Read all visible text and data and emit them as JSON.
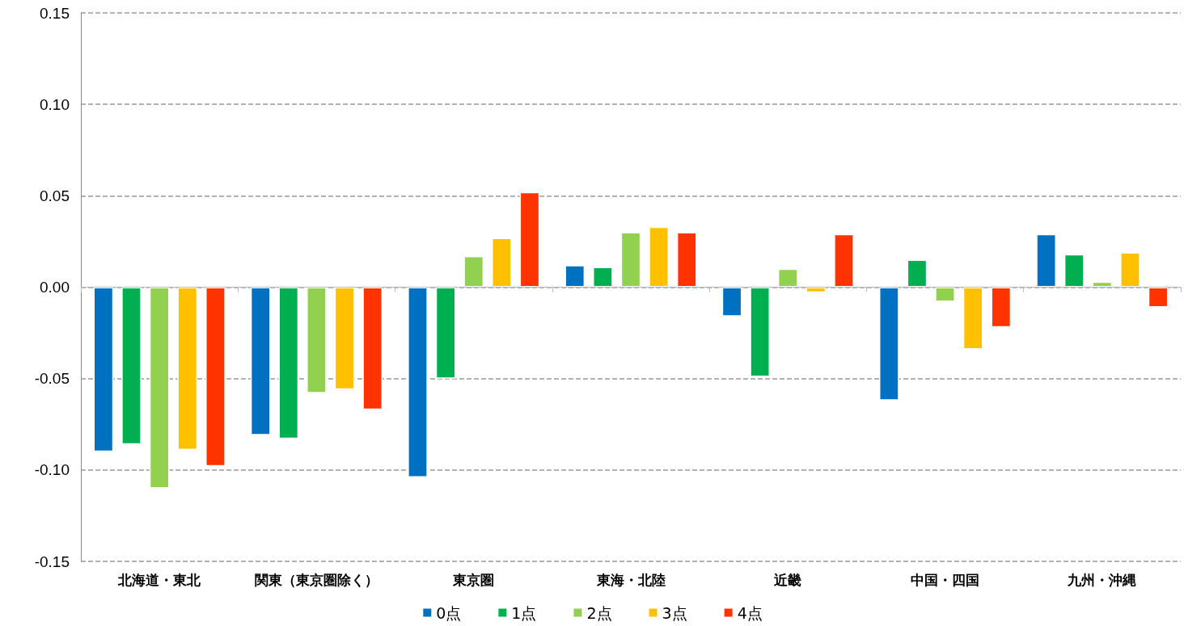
{
  "chart_data": {
    "type": "bar",
    "categories": [
      "北海道・東北",
      "関東（東京圏除く）",
      "東京圏",
      "東海・北陸",
      "近畿",
      "中国・四国",
      "九州・沖縄"
    ],
    "series": [
      {
        "name": "0点",
        "color": "#0070c0",
        "values": [
          -0.09,
          -0.081,
          -0.104,
          0.012,
          -0.016,
          -0.062,
          0.029
        ]
      },
      {
        "name": "1点",
        "color": "#00b050",
        "values": [
          -0.086,
          -0.083,
          -0.05,
          0.011,
          -0.049,
          0.015,
          0.018
        ]
      },
      {
        "name": "2点",
        "color": "#92d050",
        "values": [
          -0.11,
          -0.058,
          0.017,
          0.03,
          0.01,
          -0.008,
          0.003
        ]
      },
      {
        "name": "3点",
        "color": "#ffc000",
        "values": [
          -0.089,
          -0.056,
          0.027,
          0.033,
          -0.003,
          -0.034,
          0.019
        ]
      },
      {
        "name": "4点",
        "color": "#ff3300",
        "values": [
          -0.098,
          -0.067,
          0.052,
          0.03,
          0.029,
          -0.022,
          -0.011
        ]
      }
    ],
    "ylim": [
      -0.15,
      0.15
    ],
    "yticks": [
      {
        "value": -0.15,
        "label": "-0.15"
      },
      {
        "value": -0.1,
        "label": "-0.10"
      },
      {
        "value": -0.05,
        "label": "-0.05"
      },
      {
        "value": 0,
        "label": "0.00"
      },
      {
        "value": 0.05,
        "label": "0.05"
      },
      {
        "value": 0.1,
        "label": "0.10"
      },
      {
        "value": 0.15,
        "label": "0.15"
      }
    ],
    "grid": "y",
    "legend": "bottom"
  }
}
